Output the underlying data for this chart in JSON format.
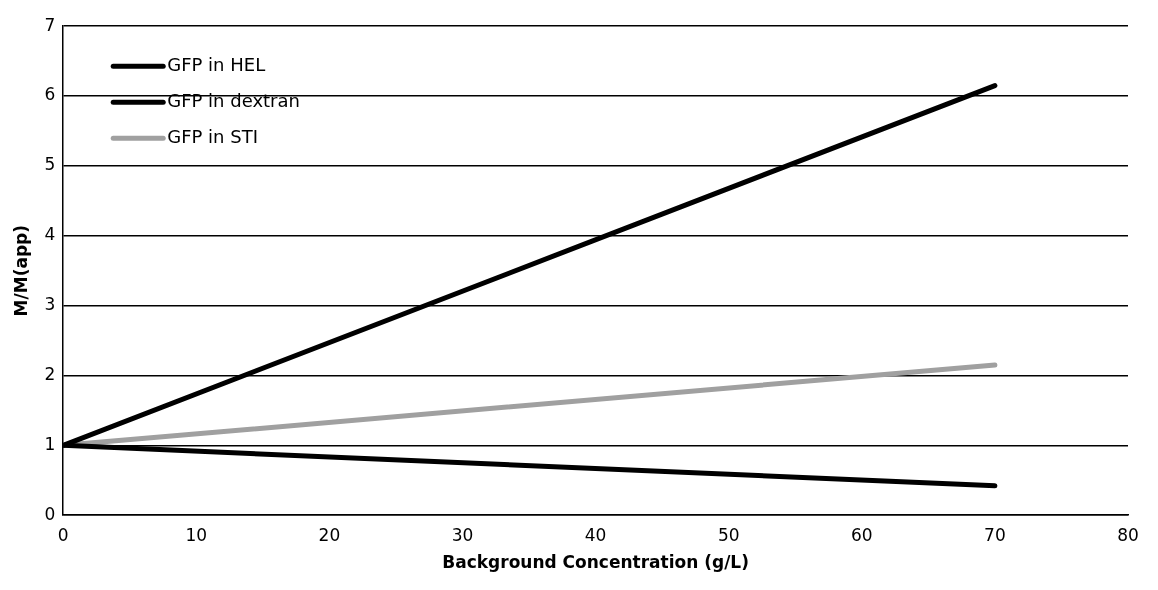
{
  "chart_data": {
    "type": "line",
    "xlabel": "Background Concentration (g/L)",
    "ylabel": "M/M(app)",
    "x": [
      0,
      70
    ],
    "series": [
      {
        "name": "GFP in HEL",
        "color": "#000000",
        "values": [
          1,
          6.15
        ]
      },
      {
        "name": "GFP in dextran",
        "color": "#000000",
        "values": [
          1,
          0.42
        ]
      },
      {
        "name": "GFP in STI",
        "color": "#a0a0a0",
        "values": [
          1,
          2.15
        ]
      }
    ],
    "xlim": [
      0,
      80
    ],
    "xticks": [
      0,
      10,
      20,
      30,
      40,
      50,
      60,
      70,
      80
    ],
    "ylim": [
      0,
      7
    ],
    "yticks": [
      0,
      1,
      2,
      3,
      4,
      5,
      6,
      7
    ],
    "grid": "y",
    "legend": "top left",
    "marker": "none",
    "line_style": "solid"
  }
}
